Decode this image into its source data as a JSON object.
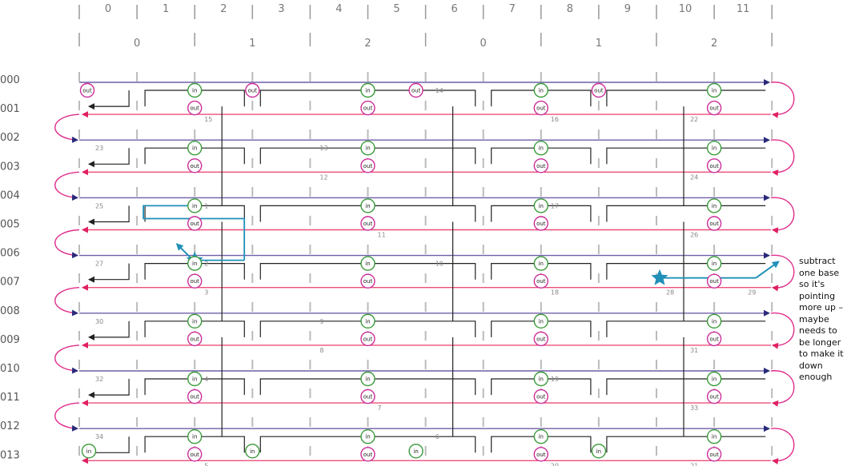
{
  "columns_top": [
    "0",
    "1",
    "2",
    "3",
    "4",
    "5",
    "6",
    "7",
    "8",
    "9",
    "10",
    "11"
  ],
  "columns_group": [
    "0",
    "1",
    "2",
    "0",
    "1",
    "2"
  ],
  "rows": [
    "000",
    "001",
    "002",
    "003",
    "004",
    "005",
    "006",
    "007",
    "008",
    "009",
    "010",
    "011",
    "012",
    "013"
  ],
  "colors": {
    "forward": "#6f5fa8",
    "reverse": "#ee4f7a",
    "path": "#222222",
    "in_marker": "#3a9a3a",
    "out_marker": "#cc2e99",
    "loop": "#e0308c",
    "highlight": "#2090b8",
    "grid": "#bbbbbb"
  },
  "in_label": "in",
  "out_label": "out",
  "strand_numbers": [
    {
      "text": "1",
      "slot": "r4-c2"
    },
    {
      "text": "2",
      "slot": "r6-c2"
    },
    {
      "text": "3",
      "slot": "r7-c2"
    },
    {
      "text": "4",
      "slot": "r10-c2"
    },
    {
      "text": "5",
      "slot": "r13-c2"
    },
    {
      "text": "6",
      "slot": "r12-c6"
    },
    {
      "text": "7",
      "slot": "r11-c5"
    },
    {
      "text": "8",
      "slot": "r9-c4"
    },
    {
      "text": "9",
      "slot": "r8-c4"
    },
    {
      "text": "10",
      "slot": "r6-c6"
    },
    {
      "text": "11",
      "slot": "r5-c5"
    },
    {
      "text": "12",
      "slot": "r3-c4"
    },
    {
      "text": "13",
      "slot": "r2-c4"
    },
    {
      "text": "14",
      "slot": "r0-c6"
    },
    {
      "text": "15",
      "slot": "r1-c2"
    },
    {
      "text": "16",
      "slot": "r1-c8"
    },
    {
      "text": "17",
      "slot": "r4-c8"
    },
    {
      "text": "18",
      "slot": "r7-c8"
    },
    {
      "text": "19",
      "slot": "r10-c8"
    },
    {
      "text": "20",
      "slot": "r13-c8"
    },
    {
      "text": "21",
      "slot": "r13-c11"
    },
    {
      "text": "22",
      "slot": "r1-c11"
    },
    {
      "text": "23",
      "slot": "r2-c0"
    },
    {
      "text": "24",
      "slot": "r3-c11"
    },
    {
      "text": "25",
      "slot": "r4-c0"
    },
    {
      "text": "26",
      "slot": "r5-c11"
    },
    {
      "text": "27",
      "slot": "r6-c0"
    },
    {
      "text": "28",
      "slot": "r7-c10"
    },
    {
      "text": "29",
      "slot": "r7-c12"
    },
    {
      "text": "30",
      "slot": "r8-c0"
    },
    {
      "text": "31",
      "slot": "r9-c11"
    },
    {
      "text": "32",
      "slot": "r10-c0"
    },
    {
      "text": "33",
      "slot": "r11-c11"
    },
    {
      "text": "34",
      "slot": "r12-c0"
    }
  ],
  "annotation": "subtract\none base\nso it's\npointing\nmore up –\nmaybe\nneeds to\nbe longer\nto make it\ndown\nenough"
}
